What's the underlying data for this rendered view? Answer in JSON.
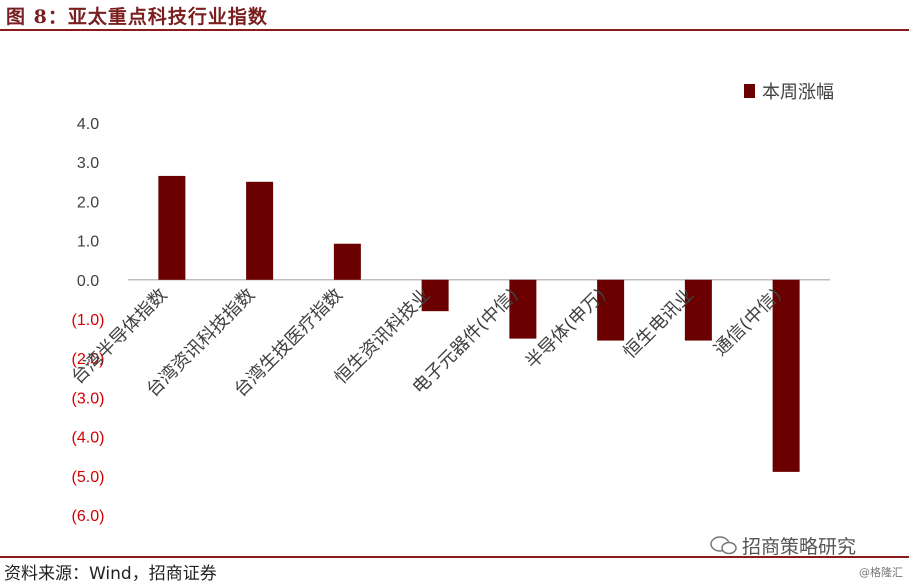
{
  "figure": {
    "title": "图 8：亚太重点科技行业指数",
    "source": "资料来源：Wind，招商证券",
    "watermark": "招商策略研究",
    "credit": "@格隆汇"
  },
  "colors": {
    "bar": "#6b0000",
    "positive_tick": "#404040",
    "negative_tick": "#d40000",
    "axis": "#bfbfbf"
  },
  "chart_data": {
    "type": "bar",
    "categories": [
      "台湾半导体指数",
      "台湾资讯科技指数",
      "台湾生技医疗指数",
      "恒生资讯科技业",
      "电子元器件(中信)",
      "半导体(申万)",
      "恒生电讯业",
      "通信(中信)"
    ],
    "series": [
      {
        "name": "本周涨幅",
        "values": [
          2.65,
          2.5,
          0.92,
          -0.8,
          -1.5,
          -1.55,
          -1.55,
          -4.9
        ]
      }
    ],
    "ylim": [
      -6.0,
      4.0
    ],
    "yticks": [
      4.0,
      3.0,
      2.0,
      1.0,
      0.0,
      -1.0,
      -2.0,
      -3.0,
      -4.0,
      -5.0,
      -6.0
    ],
    "ytick_labels": [
      "4.0",
      "3.0",
      "2.0",
      "1.0",
      "0.0",
      "(1.0)",
      "(2.0)",
      "(3.0)",
      "(4.0)",
      "(5.0)",
      "(6.0)"
    ],
    "legend_position": "top-right",
    "grid": false
  }
}
